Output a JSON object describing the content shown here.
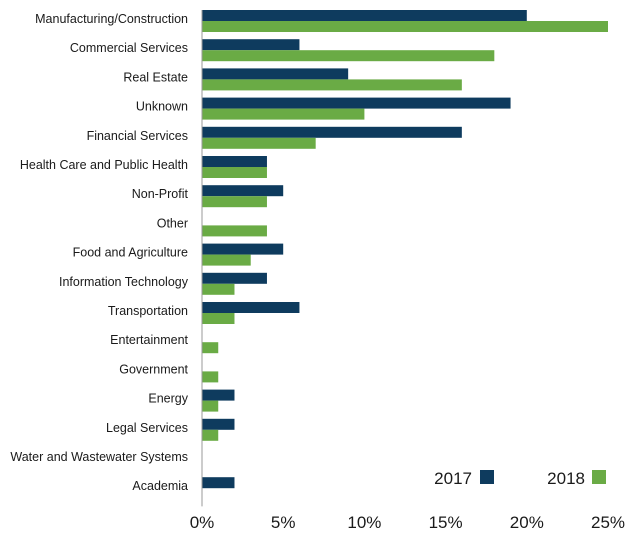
{
  "chart_data": {
    "type": "bar",
    "orientation": "horizontal",
    "categories": [
      "Manufacturing/Construction",
      "Commercial Services",
      "Real Estate",
      "Unknown",
      "Financial Services",
      "Health Care and Public Health",
      "Non-Profit",
      "Other",
      "Food and Agriculture",
      "Information Technology",
      "Transportation",
      "Entertainment",
      "Government",
      "Energy",
      "Legal Services",
      "Water and Wastewater Systems",
      "Academia"
    ],
    "series": [
      {
        "name": "2017",
        "color": "#0e3b5e",
        "values": [
          20,
          6,
          9,
          19,
          16,
          4,
          5,
          0,
          5,
          4,
          6,
          0,
          0,
          2,
          2,
          0,
          2
        ]
      },
      {
        "name": "2018",
        "color": "#6aab45",
        "values": [
          25,
          18,
          16,
          10,
          7,
          4,
          4,
          4,
          3,
          2,
          2,
          1,
          1,
          1,
          1,
          0,
          0
        ]
      }
    ],
    "xlim": [
      0,
      25
    ],
    "xticks": [
      "0%",
      "5%",
      "10%",
      "15%",
      "20%",
      "25%"
    ],
    "xtick_values": [
      0,
      5,
      10,
      15,
      20,
      25
    ],
    "legend_position": "bottom-right",
    "grid": false
  }
}
